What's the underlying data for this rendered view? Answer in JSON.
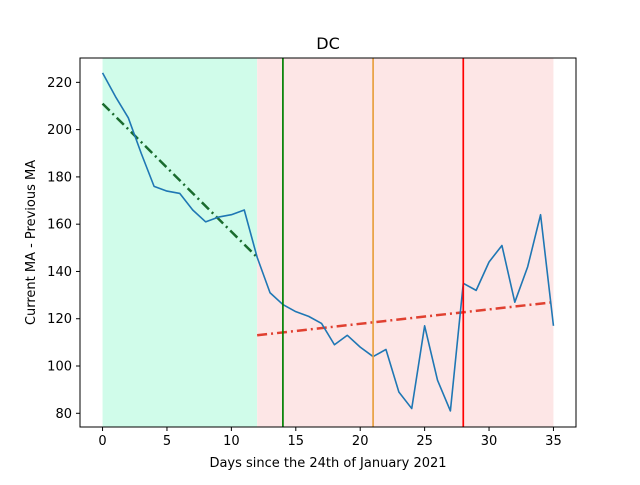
{
  "chart_data": {
    "type": "line",
    "title": "DC",
    "xlabel": "Days since the 24th of January 2021",
    "ylabel": "Current MA - Previous MA",
    "xlim": [
      -1.75,
      36.75
    ],
    "ylim": [
      74.2,
      230.3
    ],
    "xticks": [
      0,
      5,
      10,
      15,
      20,
      25,
      30,
      35
    ],
    "yticks": [
      80,
      100,
      120,
      140,
      160,
      180,
      200,
      220
    ],
    "grid": false,
    "legend": "none",
    "shaded_regions": [
      {
        "x_start": 0,
        "x_end": 12,
        "color": "#d0fcea"
      },
      {
        "x_start": 12,
        "x_end": 35,
        "color": "#fde6e6"
      }
    ],
    "vertical_lines": [
      {
        "x": 14,
        "color": "#008000"
      },
      {
        "x": 21,
        "color": "#e8a040"
      },
      {
        "x": 28,
        "color": "#ff0000"
      }
    ],
    "trend_lines": [
      {
        "x": [
          0,
          12
        ],
        "y": [
          211,
          146
        ],
        "color": "#1a6b2e",
        "style": "dash-dot"
      },
      {
        "x": [
          12,
          35
        ],
        "y": [
          113,
          127
        ],
        "color": "#e04030",
        "style": "dash-dot"
      }
    ],
    "series": [
      {
        "color": "#1f77b4",
        "x": [
          0,
          1,
          2,
          3,
          4,
          5,
          6,
          7,
          8,
          9,
          10,
          11,
          12,
          13,
          14,
          15,
          16,
          17,
          18,
          19,
          20,
          21,
          22,
          23,
          24,
          25,
          26,
          27,
          28,
          29,
          30,
          31,
          32,
          33,
          34,
          35
        ],
        "y": [
          224,
          214,
          205,
          190,
          176,
          174,
          173,
          166,
          161,
          163,
          164,
          166,
          146,
          131,
          126,
          123,
          121,
          118,
          109,
          113,
          108,
          104,
          107,
          89,
          82,
          117,
          94,
          81,
          135,
          132,
          144,
          151,
          127,
          142,
          164,
          117
        ]
      }
    ]
  }
}
